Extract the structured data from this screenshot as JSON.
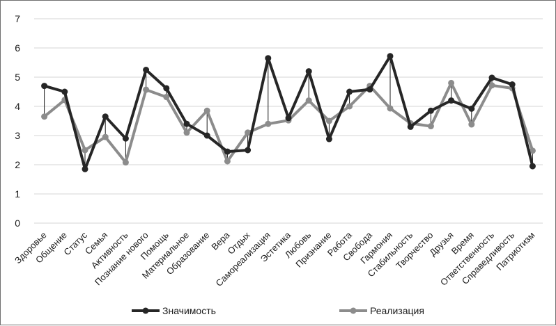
{
  "chart_data": {
    "type": "line",
    "title": "",
    "xlabel": "",
    "ylabel": "",
    "ylim": [
      0,
      7
    ],
    "yticks": [
      "0",
      "1",
      "2",
      "3",
      "4",
      "5",
      "6",
      "7"
    ],
    "grid": true,
    "legend_position": "bottom",
    "categories": [
      "Здоровье",
      "Общение",
      "Статус",
      "Семья",
      "Активность",
      "Познание нового",
      "Помощь",
      "Материальное",
      "Образование",
      "Вера",
      "Отдых",
      "Самореализация",
      "Эстетика",
      "Любовь",
      "Признание",
      "Работа",
      "Свобода",
      "Гармония",
      "Стабильность",
      "Творчество",
      "Друзья",
      "Время",
      "Ответственность",
      "Справедливость",
      "Патриотизм"
    ],
    "series": [
      {
        "name": "Значимость",
        "color": "#262626",
        "values": [
          4.7,
          4.5,
          1.85,
          3.65,
          2.9,
          5.25,
          4.62,
          3.4,
          3.0,
          2.45,
          2.5,
          5.65,
          3.6,
          5.2,
          2.88,
          4.5,
          4.58,
          5.72,
          3.3,
          3.85,
          4.2,
          3.92,
          4.98,
          4.75,
          1.95
        ]
      },
      {
        "name": "Реализация",
        "color": "#8c8c8c",
        "values": [
          3.65,
          4.22,
          2.5,
          2.95,
          2.08,
          4.57,
          4.32,
          3.1,
          3.85,
          2.12,
          3.1,
          3.4,
          3.52,
          4.2,
          3.5,
          4.0,
          4.7,
          3.93,
          3.42,
          3.32,
          4.8,
          3.38,
          4.72,
          4.62,
          2.48
        ]
      }
    ]
  }
}
